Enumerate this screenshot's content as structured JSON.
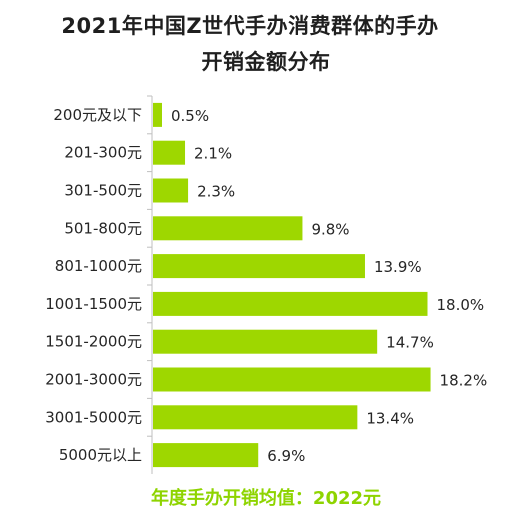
{
  "chart_data": {
    "type": "bar",
    "orientation": "horizontal",
    "title_line1": "2021年中国Z世代手办消费群体的手办",
    "title_line2": "开销金额分布",
    "categories": [
      "200元及以下",
      "201-300元",
      "301-500元",
      "501-800元",
      "801-1000元",
      "1001-1500元",
      "1501-2000元",
      "2001-3000元",
      "3001-5000元",
      "5000元以上"
    ],
    "values": [
      0.5,
      2.1,
      2.3,
      9.8,
      13.9,
      18.0,
      14.7,
      18.2,
      13.4,
      6.9
    ],
    "value_labels": [
      "0.5%",
      "2.1%",
      "2.3%",
      "9.8%",
      "13.9%",
      "18.0%",
      "14.7%",
      "18.2%",
      "13.4%",
      "6.9%"
    ],
    "unit": "%",
    "xlim": [
      0,
      20
    ],
    "bar_color": "#9ed700",
    "grid": false,
    "footer": "年度手办开销均值：2022元"
  }
}
